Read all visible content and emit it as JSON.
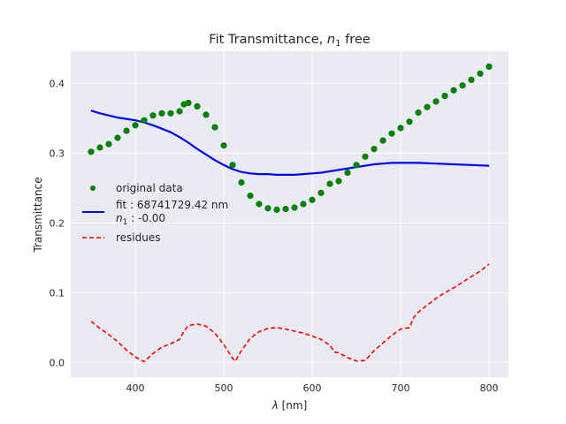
{
  "chart_data": {
    "type": "line",
    "title_main": "Fit Transmittance, ",
    "title_sym": "n",
    "title_sub": "1",
    "title_tail": " free",
    "xlabel_sym": "λ",
    "xlabel_unit": " [nm]",
    "ylabel": "Transmittance",
    "xlim": [
      327,
      822
    ],
    "ylim": [
      -0.021,
      0.446
    ],
    "xticks": [
      400,
      500,
      600,
      700,
      800
    ],
    "yticks": [
      0.0,
      0.1,
      0.2,
      0.3,
      0.4
    ],
    "xtick_labels": [
      "400",
      "500",
      "600",
      "700",
      "800"
    ],
    "ytick_labels": [
      "0.0",
      "0.1",
      "0.2",
      "0.3",
      "0.4"
    ],
    "grid": true,
    "legend_placement": "center-left",
    "colors": {
      "background": "#eaeaf2",
      "grid": "#ffffff",
      "original": "#008000",
      "fit": "#0000ff",
      "residues": "#ff0000"
    },
    "series": [
      {
        "name": "original data",
        "style": "markers",
        "x": [
          350,
          360,
          370,
          380,
          390,
          400,
          410,
          420,
          430,
          440,
          450,
          455,
          460,
          470,
          480,
          490,
          500,
          510,
          520,
          530,
          540,
          550,
          560,
          570,
          580,
          590,
          600,
          610,
          620,
          630,
          640,
          650,
          660,
          670,
          680,
          690,
          700,
          710,
          720,
          730,
          740,
          750,
          760,
          770,
          780,
          790,
          800
        ],
        "y": [
          0.302,
          0.308,
          0.313,
          0.322,
          0.332,
          0.34,
          0.347,
          0.354,
          0.357,
          0.357,
          0.36,
          0.37,
          0.372,
          0.367,
          0.355,
          0.337,
          0.311,
          0.283,
          0.258,
          0.239,
          0.227,
          0.221,
          0.219,
          0.22,
          0.222,
          0.227,
          0.233,
          0.243,
          0.256,
          0.26,
          0.272,
          0.283,
          0.295,
          0.306,
          0.318,
          0.328,
          0.336,
          0.345,
          0.358,
          0.366,
          0.374,
          0.382,
          0.39,
          0.397,
          0.405,
          0.414,
          0.424
        ]
      },
      {
        "name_line1": "fit : 68741729.42 nm",
        "name_line2_sym": "n",
        "name_line2_sub": "1",
        "name_line2_tail": " : -0.00",
        "style": "line",
        "x": [
          350,
          360,
          370,
          380,
          390,
          400,
          410,
          420,
          430,
          440,
          450,
          460,
          470,
          480,
          490,
          500,
          510,
          520,
          530,
          540,
          550,
          560,
          570,
          580,
          590,
          600,
          610,
          620,
          630,
          640,
          650,
          660,
          670,
          680,
          690,
          700,
          720,
          740,
          760,
          780,
          800
        ],
        "y": [
          0.361,
          0.357,
          0.354,
          0.351,
          0.349,
          0.347,
          0.344,
          0.34,
          0.335,
          0.33,
          0.323,
          0.315,
          0.306,
          0.298,
          0.29,
          0.283,
          0.277,
          0.273,
          0.271,
          0.27,
          0.27,
          0.269,
          0.269,
          0.269,
          0.27,
          0.271,
          0.272,
          0.274,
          0.276,
          0.278,
          0.28,
          0.282,
          0.284,
          0.285,
          0.286,
          0.286,
          0.286,
          0.285,
          0.284,
          0.283,
          0.282
        ]
      },
      {
        "name": "residues",
        "style": "dashed",
        "x": [
          350,
          360,
          370,
          380,
          390,
          400,
          410,
          420,
          430,
          440,
          450,
          455,
          460,
          470,
          480,
          490,
          500,
          505,
          510,
          513,
          520,
          530,
          540,
          550,
          560,
          570,
          580,
          590,
          600,
          610,
          620,
          625,
          630,
          640,
          650,
          660,
          670,
          680,
          690,
          700,
          710,
          715,
          720,
          730,
          740,
          750,
          760,
          770,
          780,
          790,
          800
        ],
        "y": [
          0.059,
          0.049,
          0.04,
          0.03,
          0.018,
          0.008,
          0.001,
          0.013,
          0.022,
          0.027,
          0.033,
          0.045,
          0.053,
          0.055,
          0.052,
          0.042,
          0.026,
          0.016,
          0.006,
          0.002,
          0.017,
          0.035,
          0.044,
          0.049,
          0.05,
          0.048,
          0.045,
          0.042,
          0.038,
          0.033,
          0.025,
          0.015,
          0.014,
          0.007,
          0.002,
          0.003,
          0.017,
          0.028,
          0.039,
          0.048,
          0.05,
          0.065,
          0.072,
          0.082,
          0.092,
          0.1,
          0.107,
          0.115,
          0.123,
          0.131,
          0.141
        ]
      }
    ]
  }
}
